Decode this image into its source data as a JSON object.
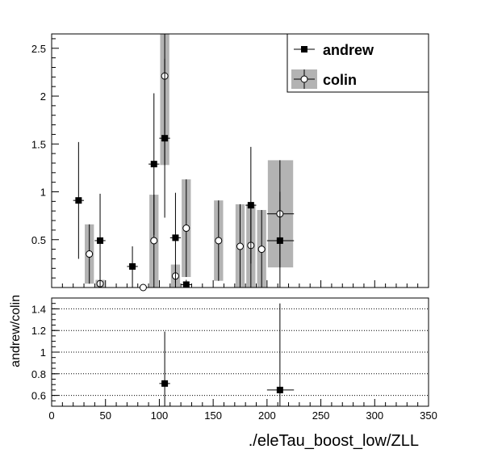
{
  "chart_data": [
    {
      "type": "scatter",
      "title": "",
      "xlabel": "",
      "ylabel": "",
      "xlim": [
        0,
        350
      ],
      "ylim": [
        0,
        2.65
      ],
      "xticks": [],
      "yticks": [
        "0.5",
        "1",
        "1.5",
        "2",
        "2.5"
      ],
      "ytick_values": [
        0.5,
        1,
        1.5,
        2,
        2.5
      ],
      "grid": false,
      "legend": {
        "position": "top-right",
        "entries": [
          "andrew",
          "colin"
        ]
      },
      "series": [
        {
          "name": "andrew",
          "marker": "filled-square",
          "color": "#000000",
          "points": [
            {
              "x": 25,
              "y": 0.91,
              "ylo": 0.3,
              "yhi": 1.52
            },
            {
              "x": 45,
              "y": 0.49,
              "ylo": 0.0,
              "yhi": 0.98
            },
            {
              "x": 75,
              "y": 0.22,
              "ylo": 0.0,
              "yhi": 0.43
            },
            {
              "x": 95,
              "y": 1.29,
              "ylo": 0.55,
              "yhi": 2.03
            },
            {
              "x": 105,
              "y": 1.56,
              "ylo": 0.73,
              "yhi": 2.39
            },
            {
              "x": 115,
              "y": 0.52,
              "ylo": 0.05,
              "yhi": 0.99
            },
            {
              "x": 125,
              "y": 0.03,
              "ylo": 0.0,
              "yhi": 0.08
            },
            {
              "x": 185,
              "y": 0.86,
              "ylo": 0.25,
              "yhi": 1.47
            },
            {
              "x": 212,
              "y": 0.49,
              "ylo": 0.0,
              "yhi": 1.0,
              "xlo": 200,
              "xhi": 225
            }
          ]
        },
        {
          "name": "colin",
          "marker": "open-circle",
          "color": "#000000",
          "band_color": "#b3b3b3",
          "points": [
            {
              "x": 35,
              "y": 0.35,
              "ylo": 0.04,
              "yhi": 0.66
            },
            {
              "x": 45,
              "y": 0.04,
              "ylo": 0.0,
              "yhi": 0.08
            },
            {
              "x": 85,
              "y": 0.0,
              "ylo": 0.0,
              "yhi": 0.0
            },
            {
              "x": 95,
              "y": 0.49,
              "ylo": 0.0,
              "yhi": 0.97
            },
            {
              "x": 105,
              "y": 2.21,
              "ylo": 1.28,
              "yhi": 2.65
            },
            {
              "x": 115,
              "y": 0.12,
              "ylo": 0.0,
              "yhi": 0.24
            },
            {
              "x": 125,
              "y": 0.62,
              "ylo": 0.11,
              "yhi": 1.13
            },
            {
              "x": 155,
              "y": 0.49,
              "ylo": 0.07,
              "yhi": 0.91
            },
            {
              "x": 175,
              "y": 0.43,
              "ylo": 0.0,
              "yhi": 0.87
            },
            {
              "x": 185,
              "y": 0.44,
              "ylo": 0.0,
              "yhi": 0.87
            },
            {
              "x": 195,
              "y": 0.4,
              "ylo": 0.0,
              "yhi": 0.81
            },
            {
              "x": 212,
              "y": 0.77,
              "ylo": 0.21,
              "yhi": 1.33,
              "xlo": 200,
              "xhi": 225
            }
          ]
        }
      ]
    },
    {
      "type": "scatter",
      "title": "",
      "xlabel": "./eleTau_boost_low/ZLL",
      "ylabel": "andrew/colin",
      "xlim": [
        0,
        350
      ],
      "ylim": [
        0.5,
        1.5
      ],
      "xticks": [
        "0",
        "50",
        "100",
        "150",
        "200",
        "250",
        "300",
        "350"
      ],
      "xtick_values": [
        0,
        50,
        100,
        150,
        200,
        250,
        300,
        350
      ],
      "yticks": [
        "0.6",
        "0.8",
        "1",
        "1.2",
        "1.4"
      ],
      "ytick_values": [
        0.6,
        0.8,
        1.0,
        1.2,
        1.4
      ],
      "grid": true,
      "series": [
        {
          "name": "andrew/colin",
          "marker": "filled-square",
          "color": "#000000",
          "points": [
            {
              "x": 105,
              "y": 0.71,
              "ylo": 0.22,
              "yhi": 1.19
            },
            {
              "x": 212,
              "y": 0.65,
              "ylo": 0.0,
              "yhi": 1.45,
              "xlo": 200,
              "xhi": 225
            }
          ]
        }
      ]
    }
  ]
}
